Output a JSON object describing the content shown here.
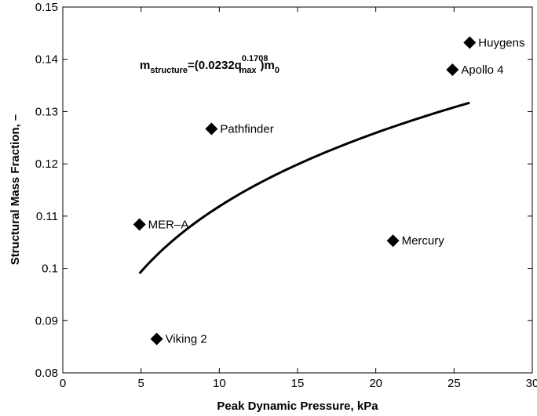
{
  "chart_data": {
    "type": "scatter",
    "xlabel": "Peak Dynamic Pressure, kPa",
    "ylabel": "Structural Mass Fraction, –",
    "xlim": [
      0,
      30
    ],
    "ylim": [
      0.08,
      0.15
    ],
    "xticks": [
      0,
      5,
      10,
      15,
      20,
      25,
      30
    ],
    "yticks": [
      0.08,
      0.09,
      0.1,
      0.11,
      0.12,
      0.13,
      0.14,
      0.15
    ],
    "ytick_labels": [
      "0.08",
      "0.09",
      "0.1",
      "0.11",
      "0.12",
      "0.13",
      "0.14",
      "0.15"
    ],
    "grid": false,
    "points": [
      {
        "label": "Huygens",
        "x": 26.0,
        "y": 0.1432
      },
      {
        "label": "Apollo 4",
        "x": 24.9,
        "y": 0.138
      },
      {
        "label": "Pathfinder",
        "x": 9.5,
        "y": 0.1267
      },
      {
        "label": "MER–A",
        "x": 4.9,
        "y": 0.1084
      },
      {
        "label": "Mercury",
        "x": 21.1,
        "y": 0.1053
      },
      {
        "label": "Viking 2",
        "x": 6.0,
        "y": 0.0865
      }
    ],
    "fit": {
      "x_start": 4.9,
      "x_end": 26.0,
      "coefficient": 0.0232,
      "exponent": 0.1708
    },
    "annotation": {
      "m": "m",
      "structure": "structure",
      "eq": "=(0.0232q",
      "exp": "0.1708",
      "max": "max",
      "close": ")m",
      "zero": "0"
    }
  }
}
